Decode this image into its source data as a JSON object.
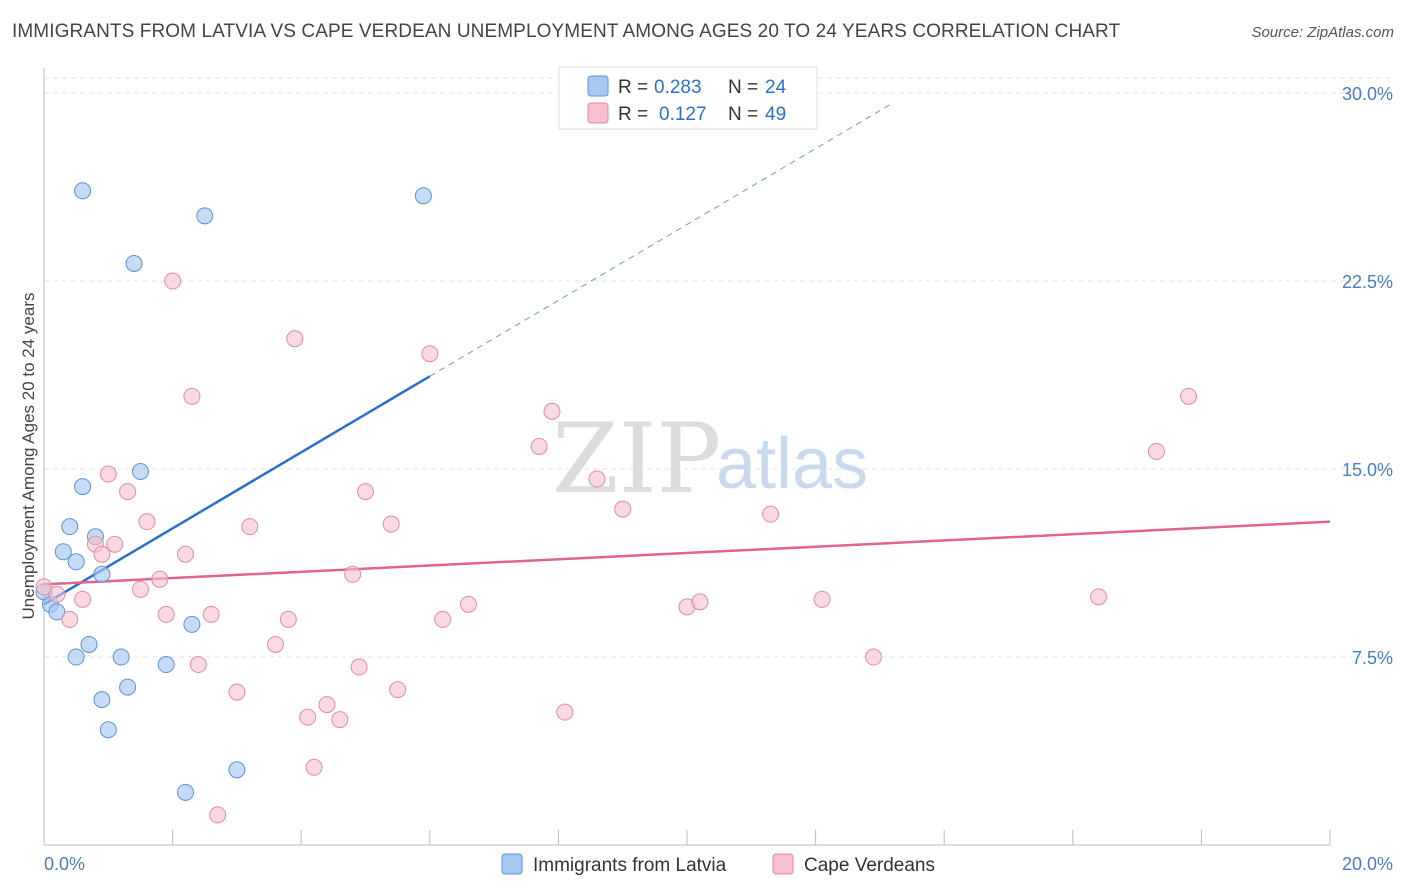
{
  "title": "IMMIGRANTS FROM LATVIA VS CAPE VERDEAN UNEMPLOYMENT AMONG AGES 20 TO 24 YEARS CORRELATION CHART",
  "source": "Source: ZipAtlas.com",
  "watermark": {
    "zip": "ZIP",
    "atlas": "atlas"
  },
  "colors": {
    "blue": "#a8c8f0",
    "blue_stroke": "#5b93d6",
    "blue_line": "#2a6fcc",
    "pink": "#f7bfd0",
    "pink_stroke": "#e28aa8",
    "pink_line": "#e0648f",
    "axis_text": "#4a7cc4"
  },
  "legend": {
    "blue": {
      "r_label": "R =",
      "r_value": "0.283",
      "n_label": "N =",
      "n_value": "24"
    },
    "pink": {
      "r_label": "R =",
      "r_value": "0.127",
      "n_label": "N =",
      "n_value": "49"
    }
  },
  "chart_data": {
    "type": "scatter",
    "title": "IMMIGRANTS FROM LATVIA VS CAPE VERDEAN UNEMPLOYMENT AMONG AGES 20 TO 24 YEARS CORRELATION CHART",
    "xlabel": "",
    "ylabel": "Unemployment Among Ages 20 to 24 years",
    "xlim": [
      0,
      20
    ],
    "ylim": [
      0,
      30
    ],
    "x_tick_labels": [
      "0.0%",
      "20.0%"
    ],
    "y_ticks": [
      7.5,
      15.0,
      22.5,
      30.0
    ],
    "y_tick_labels": [
      "7.5%",
      "15.0%",
      "22.5%",
      "30.0%"
    ],
    "legend_bottom": [
      "Immigrants from Latvia",
      "Cape Verdeans"
    ],
    "series": [
      {
        "name": "Immigrants from Latvia",
        "color": "blue",
        "points": [
          [
            0.0,
            10.1
          ],
          [
            0.1,
            9.6
          ],
          [
            0.2,
            9.3
          ],
          [
            0.3,
            11.7
          ],
          [
            0.4,
            12.7
          ],
          [
            0.5,
            11.3
          ],
          [
            0.5,
            7.5
          ],
          [
            0.6,
            14.3
          ],
          [
            0.7,
            8.0
          ],
          [
            0.8,
            12.3
          ],
          [
            0.9,
            10.8
          ],
          [
            0.9,
            5.8
          ],
          [
            1.0,
            4.6
          ],
          [
            1.2,
            7.5
          ],
          [
            1.3,
            6.3
          ],
          [
            1.4,
            23.2
          ],
          [
            1.5,
            14.9
          ],
          [
            1.9,
            7.2
          ],
          [
            2.2,
            2.1
          ],
          [
            2.3,
            8.8
          ],
          [
            2.5,
            25.1
          ],
          [
            3.0,
            3.0
          ],
          [
            0.6,
            26.1
          ],
          [
            5.9,
            25.9
          ]
        ],
        "trend": {
          "x0": 0.0,
          "y0": 9.6,
          "x1": 6.0,
          "y1": 18.7,
          "dash_x1": 13.2,
          "dash_y1": 29.6
        }
      },
      {
        "name": "Cape Verdeans",
        "color": "pink",
        "points": [
          [
            0.0,
            10.3
          ],
          [
            0.2,
            10.0
          ],
          [
            0.4,
            9.0
          ],
          [
            0.6,
            9.8
          ],
          [
            0.8,
            12.0
          ],
          [
            0.9,
            11.6
          ],
          [
            1.0,
            14.8
          ],
          [
            1.1,
            12.0
          ],
          [
            1.3,
            14.1
          ],
          [
            1.5,
            10.2
          ],
          [
            1.6,
            12.9
          ],
          [
            1.8,
            10.6
          ],
          [
            1.9,
            9.2
          ],
          [
            2.0,
            22.5
          ],
          [
            2.2,
            11.6
          ],
          [
            2.3,
            17.9
          ],
          [
            2.4,
            7.2
          ],
          [
            2.6,
            9.2
          ],
          [
            2.7,
            1.2
          ],
          [
            3.0,
            6.1
          ],
          [
            3.2,
            12.7
          ],
          [
            3.6,
            8.0
          ],
          [
            3.8,
            9.0
          ],
          [
            3.9,
            20.2
          ],
          [
            4.1,
            5.1
          ],
          [
            4.2,
            3.1
          ],
          [
            4.4,
            5.6
          ],
          [
            4.6,
            5.0
          ],
          [
            4.8,
            10.8
          ],
          [
            4.9,
            7.1
          ],
          [
            5.0,
            14.1
          ],
          [
            5.5,
            6.2
          ],
          [
            5.4,
            12.8
          ],
          [
            6.0,
            19.6
          ],
          [
            6.2,
            9.0
          ],
          [
            6.6,
            9.6
          ],
          [
            7.7,
            15.9
          ],
          [
            7.9,
            17.3
          ],
          [
            8.1,
            5.3
          ],
          [
            8.6,
            14.6
          ],
          [
            9.0,
            13.4
          ],
          [
            10.0,
            9.5
          ],
          [
            10.2,
            9.7
          ],
          [
            11.3,
            13.2
          ],
          [
            12.1,
            9.8
          ],
          [
            12.9,
            7.5
          ],
          [
            16.4,
            9.9
          ],
          [
            17.3,
            15.7
          ],
          [
            17.8,
            17.9
          ]
        ],
        "trend": {
          "x0": 0.0,
          "y0": 10.4,
          "x1": 20.0,
          "y1": 12.9
        }
      }
    ]
  }
}
